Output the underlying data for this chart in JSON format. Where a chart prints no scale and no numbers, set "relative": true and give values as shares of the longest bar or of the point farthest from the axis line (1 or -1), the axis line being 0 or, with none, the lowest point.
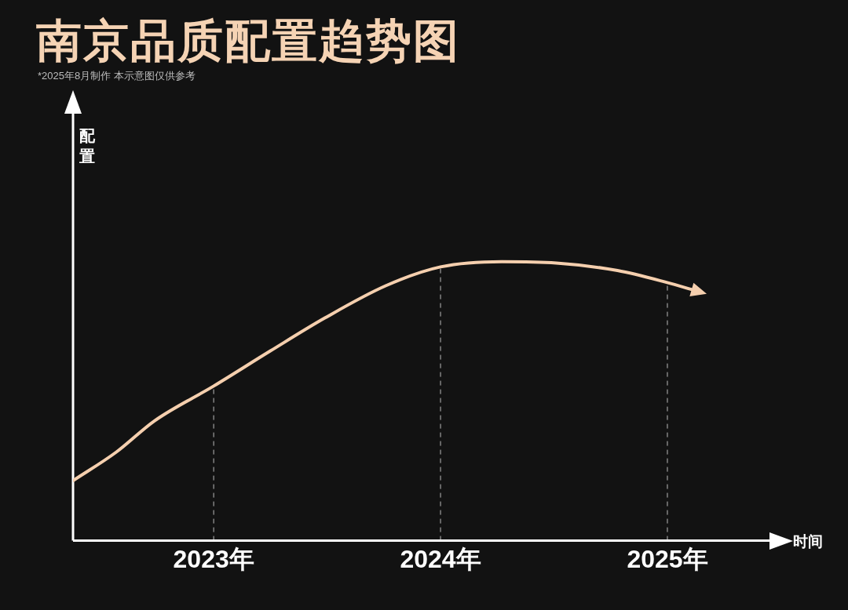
{
  "chart_data": {
    "type": "line",
    "title": "南京品质配置趋势图",
    "subtitle": "*2025年8月制作 本示意图仅供参考",
    "xlabel": "时间",
    "annotations": [
      "配置"
    ],
    "relative": true,
    "x": [
      2022.38,
      2022.57,
      2022.74,
      2023,
      2023.25,
      2023.49,
      2023.76,
      2024,
      2024.27,
      2024.51,
      2024.78,
      2024.99,
      2025.14
    ],
    "series": [
      {
        "color": "#f5cfae",
        "values": [
          0.215,
          0.317,
          0.43,
          0.554,
          0.68,
          0.798,
          0.914,
          0.981,
          1,
          0.995,
          0.968,
          0.927,
          0.892
        ]
      }
    ],
    "xlim": [
      2022.38,
      2025.45
    ],
    "xticks": [
      {
        "value": 2023,
        "label": "2023年"
      },
      {
        "value": 2024,
        "label": "2024年"
      },
      {
        "value": 2025,
        "label": "2025年"
      }
    ],
    "ref_lines": [
      {
        "axis": "x",
        "value": 2023,
        "color": "#bbbbbb",
        "line_style": "dashed"
      },
      {
        "axis": "x",
        "value": 2024,
        "color": "#bbbbbb",
        "line_style": "dashed"
      },
      {
        "axis": "x",
        "value": 2025,
        "color": "#bbbbbb",
        "line_style": "dashed"
      }
    ],
    "grid": false,
    "legend": false,
    "marker": "none",
    "line_style": "solid"
  }
}
